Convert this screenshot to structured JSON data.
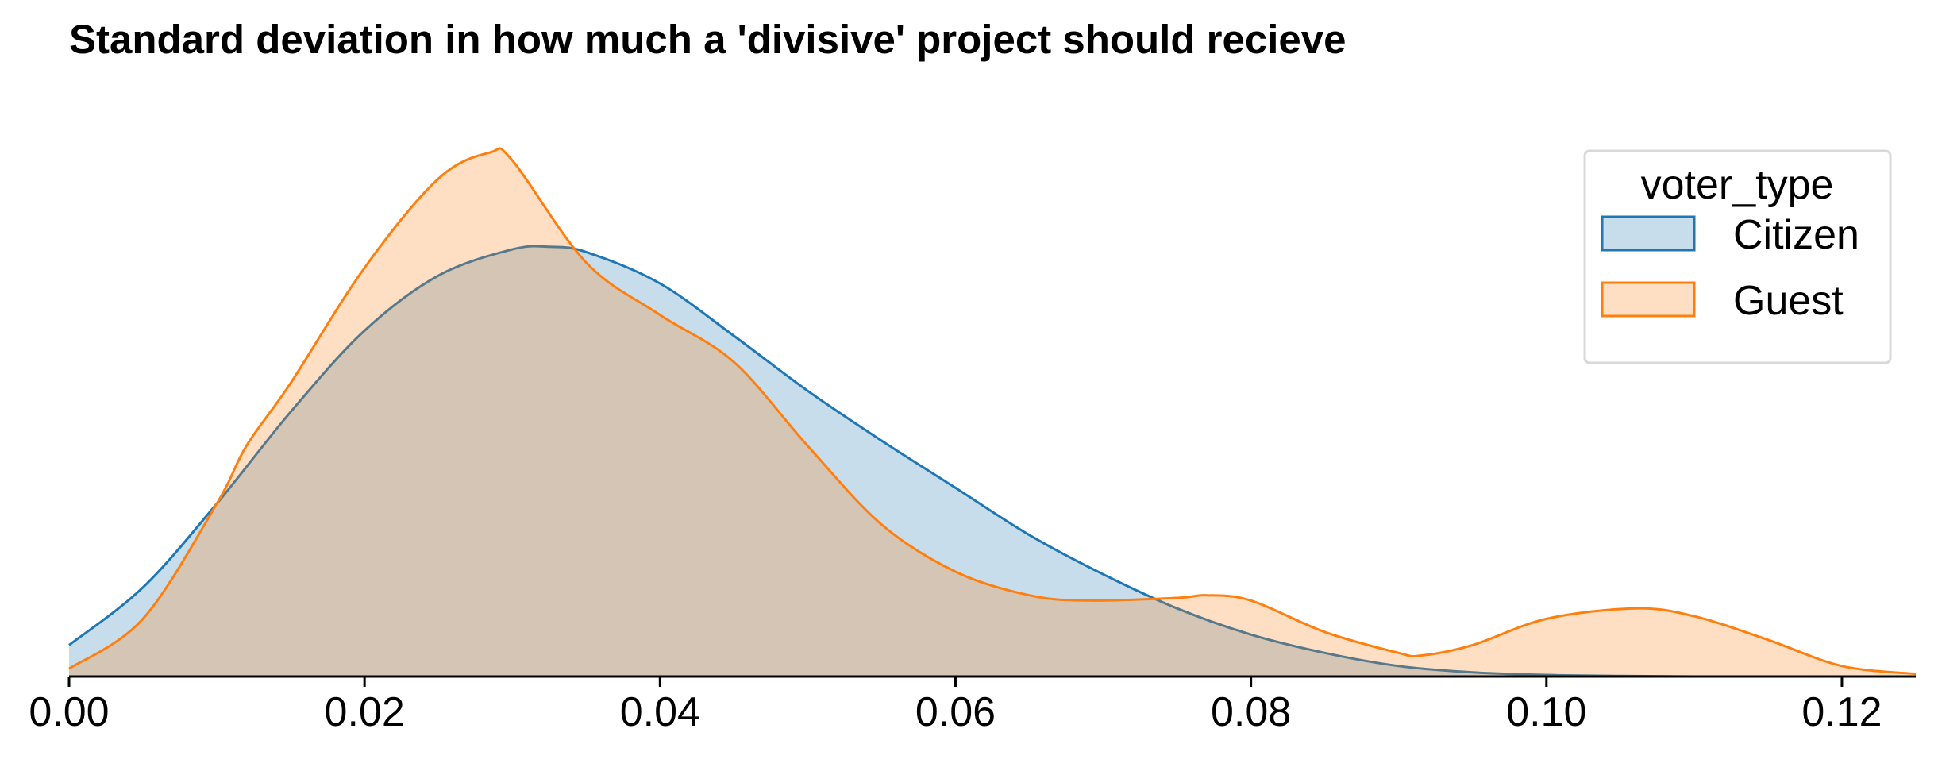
{
  "chart_data": {
    "type": "area",
    "subtype": "kde",
    "title": "Standard deviation in how much a 'divisive' project should recieve",
    "xlabel": "",
    "ylabel": "",
    "xlim": [
      0.0,
      0.125
    ],
    "x_ticks": [
      0.0,
      0.02,
      0.04,
      0.06,
      0.08,
      0.1,
      0.12
    ],
    "x_tick_labels": [
      "0.00",
      "0.02",
      "0.04",
      "0.06",
      "0.08",
      "0.10",
      "0.12"
    ],
    "y_axis_visible": false,
    "grid": false,
    "ylim": [
      0,
      1.0
    ],
    "legend": {
      "title": "voter_type",
      "placement": "top-right"
    },
    "series": [
      {
        "name": "Citizen",
        "color": "#1f77b4",
        "fill_color": "#c5dbec",
        "x": [
          0.0,
          0.005,
          0.01,
          0.015,
          0.02,
          0.025,
          0.03,
          0.0325,
          0.035,
          0.04,
          0.045,
          0.05,
          0.055,
          0.06,
          0.065,
          0.07,
          0.075,
          0.08,
          0.085,
          0.09,
          0.095,
          0.1,
          0.105,
          0.11,
          0.115,
          0.12,
          0.125
        ],
        "y": [
          0.06,
          0.17,
          0.33,
          0.505,
          0.66,
          0.765,
          0.815,
          0.82,
          0.81,
          0.75,
          0.65,
          0.545,
          0.45,
          0.36,
          0.27,
          0.195,
          0.13,
          0.08,
          0.045,
          0.02,
          0.008,
          0.003,
          0.001,
          0.0,
          0.0,
          0.0,
          0.0
        ]
      },
      {
        "name": "Guest",
        "color": "#ff7f0e",
        "fill_color": "#fddcc0",
        "x": [
          0.0,
          0.005,
          0.01,
          0.012,
          0.015,
          0.02,
          0.025,
          0.0285,
          0.03,
          0.035,
          0.04,
          0.045,
          0.05,
          0.055,
          0.06,
          0.065,
          0.069,
          0.075,
          0.077,
          0.08,
          0.085,
          0.09,
          0.0915,
          0.095,
          0.1,
          0.106,
          0.11,
          0.115,
          0.12,
          0.125
        ],
        "y": [
          0.015,
          0.11,
          0.33,
          0.44,
          0.56,
          0.78,
          0.95,
          1.0,
          0.985,
          0.79,
          0.69,
          0.6,
          0.44,
          0.29,
          0.2,
          0.155,
          0.145,
          0.15,
          0.155,
          0.145,
          0.085,
          0.045,
          0.04,
          0.06,
          0.11,
          0.13,
          0.115,
          0.07,
          0.02,
          0.005
        ]
      }
    ]
  }
}
